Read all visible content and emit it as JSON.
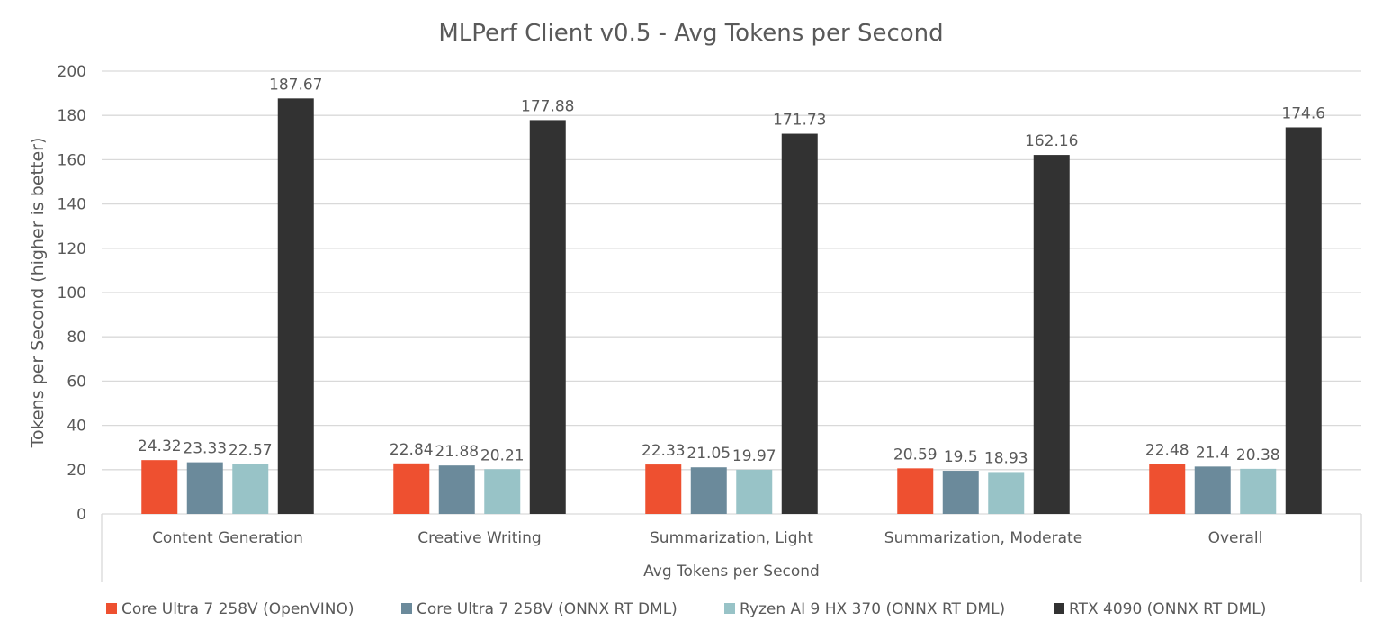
{
  "chart_data": {
    "type": "bar",
    "title": "MLPerf Client v0.5 - Avg Tokens per Second",
    "xlabel": "Avg Tokens per Second",
    "ylabel": "Tokens per Second (higher is better)",
    "ylim": [
      0,
      200
    ],
    "yticks": [
      0,
      20,
      40,
      60,
      80,
      100,
      120,
      140,
      160,
      180,
      200
    ],
    "grid": true,
    "legend_position": "bottom",
    "categories": [
      "Content Generation",
      "Creative Writing",
      "Summarization, Light",
      "Summarization, Moderate",
      "Overall"
    ],
    "series": [
      {
        "name": "Core Ultra 7 258V (OpenVINO)",
        "color": "#EE5030",
        "values": [
          24.32,
          22.84,
          22.33,
          20.59,
          22.48
        ],
        "labels": [
          "24.32",
          "22.84",
          "22.33",
          "20.59",
          "22.48"
        ]
      },
      {
        "name": "Core Ultra 7 258V (ONNX RT DML)",
        "color": "#6B8A9B",
        "values": [
          23.33,
          21.88,
          21.05,
          19.5,
          21.4
        ],
        "labels": [
          "23.33",
          "21.88",
          "21.05",
          "19.5",
          "21.4"
        ]
      },
      {
        "name": "Ryzen AI 9 HX 370 (ONNX RT DML)",
        "color": "#98C3C7",
        "values": [
          22.57,
          20.21,
          19.97,
          18.93,
          20.38
        ],
        "labels": [
          "22.57",
          "20.21",
          "19.97",
          "18.93",
          "20.38"
        ]
      },
      {
        "name": "RTX 4090 (ONNX RT DML)",
        "color": "#323232",
        "values": [
          187.67,
          177.88,
          171.73,
          162.16,
          174.6
        ],
        "labels": [
          "187.67",
          "177.88",
          "171.73",
          "162.16",
          "174.6"
        ]
      }
    ]
  }
}
